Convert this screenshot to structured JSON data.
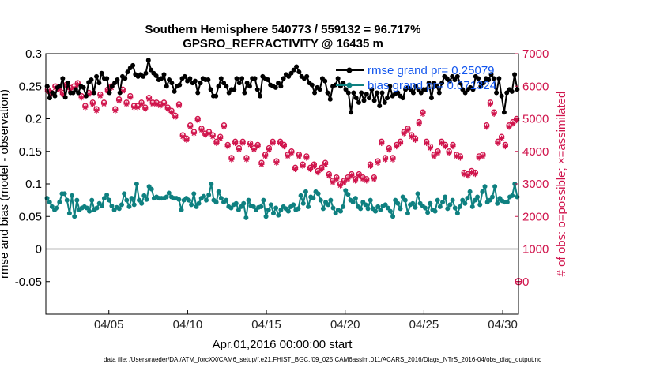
{
  "chart_data": {
    "type": "line",
    "title": "Southern Hemisphere 540773 / 559132 = 96.717%",
    "subtitle": "GPSRO_REFRACTIVITY @ 16435 m",
    "xlabel": "Apr.01,2016 00:00:00 start",
    "ylabel": "rmse and bias (model - observation)",
    "ylabel_right": "# of obs: o=possible; ×=assimilated",
    "footnote": "data file: /Users/raeder/DAI/ATM_forcXX/CAM6_setup/f.e21.FHIST_BGC.f09_025.CAM6assim.011/ACARS_2016/Diags_NTrS_2016-04/obs_diag_output.nc",
    "xlim": [
      1.0,
      31.0
    ],
    "ylim": [
      -0.1,
      0.3
    ],
    "ylim_right": [
      -1000,
      7000
    ],
    "x_ticks": [
      5,
      10,
      15,
      20,
      25,
      30
    ],
    "x_tick_labels": [
      "04/05",
      "04/10",
      "04/15",
      "04/20",
      "04/25",
      "04/30"
    ],
    "y_ticks": [
      "0.3",
      "0.25",
      "0.2",
      "0.15",
      "0.1",
      "0.05",
      "0",
      "-0.05"
    ],
    "y_tick_values": [
      0.3,
      0.25,
      0.2,
      0.15,
      0.1,
      0.05,
      0,
      -0.05
    ],
    "y2_ticks": [
      "7000",
      "6000",
      "5000",
      "4000",
      "3000",
      "2000",
      "1000",
      "0"
    ],
    "y2_tick_values": [
      7000,
      6000,
      5000,
      4000,
      3000,
      2000,
      1000,
      0
    ],
    "zero_line": 0,
    "colors": {
      "rmse": "#000000",
      "bias": "#0e8080",
      "obs": "#d0144c",
      "legend_text": "#1155ee"
    },
    "legend_position": "top-right",
    "series": [
      {
        "name": "rmse grand pr= 0.25079",
        "marker": "dot",
        "values": [
          0.25,
          0.232,
          0.24,
          0.235,
          0.248,
          0.25,
          0.262,
          0.233,
          0.255,
          0.24,
          0.24,
          0.245,
          0.24,
          0.25,
          0.248,
          0.235,
          0.256,
          0.26,
          0.24,
          0.265,
          0.255,
          0.27,
          0.262,
          0.262,
          0.24,
          0.25,
          0.255,
          0.26,
          0.24,
          0.265,
          0.262,
          0.272,
          0.278,
          0.282,
          0.268,
          0.265,
          0.268,
          0.265,
          0.27,
          0.29,
          0.275,
          0.27,
          0.266,
          0.26,
          0.262,
          0.268,
          0.25,
          0.26,
          0.255,
          0.242,
          0.25,
          0.252,
          0.262,
          0.265,
          0.258,
          0.262,
          0.255,
          0.258,
          0.24,
          0.255,
          0.262,
          0.26,
          0.26,
          0.245,
          0.235,
          0.235,
          0.25,
          0.262,
          0.255,
          0.25,
          0.24,
          0.245,
          0.245,
          0.262,
          0.255,
          0.262,
          0.24,
          0.255,
          0.25,
          0.262,
          0.262,
          0.245,
          0.235,
          0.265,
          0.262,
          0.26,
          0.252,
          0.25,
          0.248,
          0.255,
          0.25,
          0.262,
          0.268,
          0.265,
          0.27,
          0.275,
          0.28,
          0.272,
          0.265,
          0.262,
          0.265,
          0.255,
          0.252,
          0.24,
          0.248,
          0.245,
          0.262,
          0.258,
          0.24,
          0.23,
          0.25,
          0.252,
          0.262,
          0.25,
          0.255,
          0.245,
          0.24,
          0.21,
          0.24,
          0.232,
          0.225,
          0.24,
          0.228,
          0.238,
          0.232,
          0.245,
          0.228,
          0.24,
          0.22,
          0.24,
          0.225,
          0.232,
          0.25,
          0.235,
          0.238,
          0.24,
          0.235,
          0.232,
          0.245,
          0.248,
          0.245,
          0.24,
          0.25,
          0.245,
          0.24,
          0.245,
          0.245,
          0.255,
          0.232,
          0.255,
          0.25,
          0.24,
          0.255,
          0.265,
          0.262,
          0.258,
          0.265,
          0.26,
          0.265,
          0.255,
          0.245,
          0.24,
          0.245,
          0.248,
          0.245,
          0.265,
          0.262,
          0.25,
          0.255,
          0.262,
          0.26,
          0.268,
          0.262,
          0.24,
          0.262,
          0.235,
          0.21,
          0.24,
          0.245,
          0.242,
          0.268,
          0.245
        ]
      },
      {
        "name": "bias grand pr= 0.071324",
        "marker": "dot",
        "values": [
          0.078,
          0.072,
          0.065,
          0.06,
          0.063,
          0.072,
          0.085,
          0.085,
          0.075,
          0.055,
          0.082,
          0.05,
          0.075,
          0.06,
          0.063,
          0.065,
          0.063,
          0.058,
          0.075,
          0.06,
          0.063,
          0.07,
          0.066,
          0.078,
          0.083,
          0.075,
          0.066,
          0.06,
          0.064,
          0.062,
          0.068,
          0.085,
          0.075,
          0.065,
          0.078,
          0.068,
          0.1,
          0.075,
          0.07,
          0.082,
          0.076,
          0.096,
          0.092,
          0.078,
          0.08,
          0.078,
          0.078,
          0.078,
          0.08,
          0.086,
          0.08,
          0.078,
          0.078,
          0.076,
          0.06,
          0.075,
          0.078,
          0.075,
          0.068,
          0.085,
          0.065,
          0.07,
          0.078,
          0.081,
          0.075,
          0.083,
          0.1,
          0.075,
          0.072,
          0.088,
          0.078,
          0.072,
          0.075,
          0.065,
          0.063,
          0.068,
          0.07,
          0.06,
          0.065,
          0.07,
          0.048,
          0.075,
          0.066,
          0.065,
          0.06,
          0.064,
          0.065,
          0.075,
          0.05,
          0.06,
          0.068,
          0.055,
          0.063,
          0.052,
          0.06,
          0.065,
          0.062,
          0.058,
          0.065,
          0.068,
          0.06,
          0.062,
          0.082,
          0.07,
          0.088,
          0.065,
          0.08,
          0.078,
          0.088,
          0.085,
          0.075,
          0.062,
          0.072,
          0.068,
          0.075,
          0.063,
          0.055,
          0.06,
          0.058,
          0.065,
          0.09,
          0.084,
          0.075,
          0.072,
          0.078,
          0.065,
          0.062,
          0.072,
          0.068,
          0.062,
          0.075,
          0.062,
          0.058,
          0.065,
          0.06,
          0.066,
          0.068,
          0.063,
          0.058,
          0.05,
          0.075,
          0.07,
          0.062,
          0.08,
          0.075,
          0.055,
          0.068,
          0.07,
          0.064,
          0.085,
          0.07,
          0.066,
          0.063,
          0.056,
          0.07,
          0.06,
          0.058,
          0.075,
          0.065,
          0.072,
          0.08,
          0.062,
          0.068,
          0.075,
          0.063,
          0.055,
          0.065,
          0.075,
          0.07,
          0.078,
          0.088,
          0.065,
          0.075,
          0.08,
          0.068,
          0.088,
          0.096,
          0.072,
          0.075,
          0.08,
          0.096,
          0.07,
          0.078,
          0.074,
          0.072,
          0.072,
          0.08,
          0.082,
          0.1,
          0.08
        ]
      }
    ],
    "obs_possible": [
      5900,
      5800,
      6000,
      5950,
      5800,
      6050,
      5950,
      6000,
      6100,
      5700,
      5400,
      5800,
      5500,
      5300,
      5750,
      5500,
      5900,
      6000,
      5300,
      5600,
      5900,
      5500,
      5700,
      5400,
      5400,
      5500,
      5350,
      5650,
      5500,
      5500,
      5450,
      5500,
      5350,
      5250,
      5100,
      5450,
      4500,
      4400,
      4800,
      4600,
      5000,
      4700,
      4550,
      4600,
      4500,
      4300,
      4450,
      4800,
      4200,
      3800,
      4300,
      4100,
      4300,
      3800,
      4250,
      4100,
      4200,
      3650,
      3900,
      4100,
      4300,
      3700,
      4300,
      4200,
      3900,
      4000,
      3500,
      3900,
      3600,
      3850,
      3500,
      3600,
      3400,
      3500,
      3650,
      3300,
      3100,
      3200,
      3000,
      3100,
      3200,
      3300,
      3150,
      3300,
      3200,
      3150,
      3600,
      3200,
      3700,
      4300,
      3800,
      4100,
      3800,
      4200,
      4300,
      4600,
      4700,
      4500,
      4400,
      4900,
      5200,
      4300,
      4150,
      3900,
      4000,
      4300,
      4200,
      4000,
      4200,
      3900,
      3850,
      3350,
      3300,
      3400,
      3350,
      3850,
      3900,
      4800,
      5500,
      5200,
      4300,
      4450,
      4200,
      4800,
      4900,
      5000
    ],
    "obs_assimilated": [
      5850,
      5750,
      5950,
      5900,
      5750,
      6000,
      5900,
      5950,
      6050,
      5650,
      5350,
      5750,
      5450,
      5250,
      5700,
      5450,
      5850,
      5950,
      5250,
      5550,
      5850,
      5450,
      5650,
      5350,
      5350,
      5450,
      5300,
      5600,
      5450,
      5450,
      5400,
      5450,
      5300,
      5200,
      5050,
      5400,
      4450,
      4350,
      4750,
      4550,
      4950,
      4650,
      4500,
      4550,
      4450,
      4250,
      4400,
      4750,
      4150,
      3750,
      4250,
      4050,
      4250,
      3750,
      4200,
      4050,
      4150,
      3600,
      3850,
      4050,
      4250,
      3650,
      4250,
      4150,
      3850,
      3950,
      3450,
      3850,
      3550,
      3800,
      3450,
      3550,
      3350,
      3450,
      3600,
      3250,
      3050,
      3150,
      2950,
      3050,
      3150,
      3250,
      3100,
      3250,
      3150,
      3100,
      3550,
      3150,
      3650,
      4250,
      3750,
      4050,
      3750,
      4150,
      4250,
      4550,
      4650,
      4450,
      4350,
      4850,
      5150,
      4250,
      4100,
      3850,
      3950,
      4250,
      4150,
      3950,
      4150,
      3850,
      3800,
      3300,
      3250,
      3350,
      3300,
      3800,
      3850,
      4750,
      5450,
      5150,
      4250,
      4400,
      4150,
      4750,
      4850,
      4950
    ],
    "obs_outlier": {
      "x": 31.0,
      "value": 0
    }
  }
}
